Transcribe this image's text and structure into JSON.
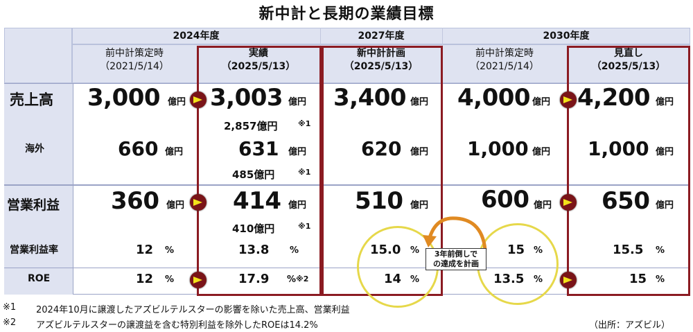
{
  "title": "新中計と長期の業績目標",
  "years": {
    "y2024": "2024年度",
    "y2027": "2027年度",
    "y2030": "2030年度"
  },
  "columns": [
    {
      "label": "前中計策定時",
      "date": "（2021/5/14）"
    },
    {
      "label": "実績",
      "date": "（2025/5/13）"
    },
    {
      "label": "新中計計画",
      "date": "（2025/5/13）"
    },
    {
      "label": "前中計策定時",
      "date": "（2021/5/14）"
    },
    {
      "label": "見直し",
      "date": "（2025/5/13）"
    }
  ],
  "rows": {
    "sales": {
      "label": "売上高",
      "values": [
        "3,000",
        "3,003",
        "3,400",
        "4,000",
        "4,200"
      ],
      "unit": "億円",
      "note_value": "2,857億円",
      "note_mark": "※1"
    },
    "overseas": {
      "label": "海外",
      "values": [
        "660",
        "631",
        "620",
        "1,000",
        "1,000"
      ],
      "unit": "億円",
      "note_value": "485億円",
      "note_mark": "※1"
    },
    "op": {
      "label": "営業利益",
      "values": [
        "360",
        "414",
        "510",
        "600",
        "650"
      ],
      "unit": "億円",
      "note_value": "410億円",
      "note_mark": "※1"
    },
    "opm": {
      "label": "営業利益率",
      "values": [
        "12",
        "13.8",
        "15.0",
        "15",
        "15.5"
      ],
      "unit": "%"
    },
    "roe": {
      "label": "ROE",
      "values": [
        "12",
        "17.9",
        "14",
        "13.5",
        "15"
      ],
      "unit": "%",
      "note_mark": "※2"
    }
  },
  "callout": {
    "line1": "3年前倒しで",
    "line2": "の達成を計画"
  },
  "footnotes": {
    "f1_mark": "※1",
    "f1_text": "2024年10月に譲渡したアズビルテルスターの影響を除いた売上高、営業利益",
    "f2_mark": "※2",
    "f2_text": "アズビルテルスターの譲渡益を含む特別利益を除外したROEは14.2%",
    "source": "（出所：アズビル）"
  }
}
